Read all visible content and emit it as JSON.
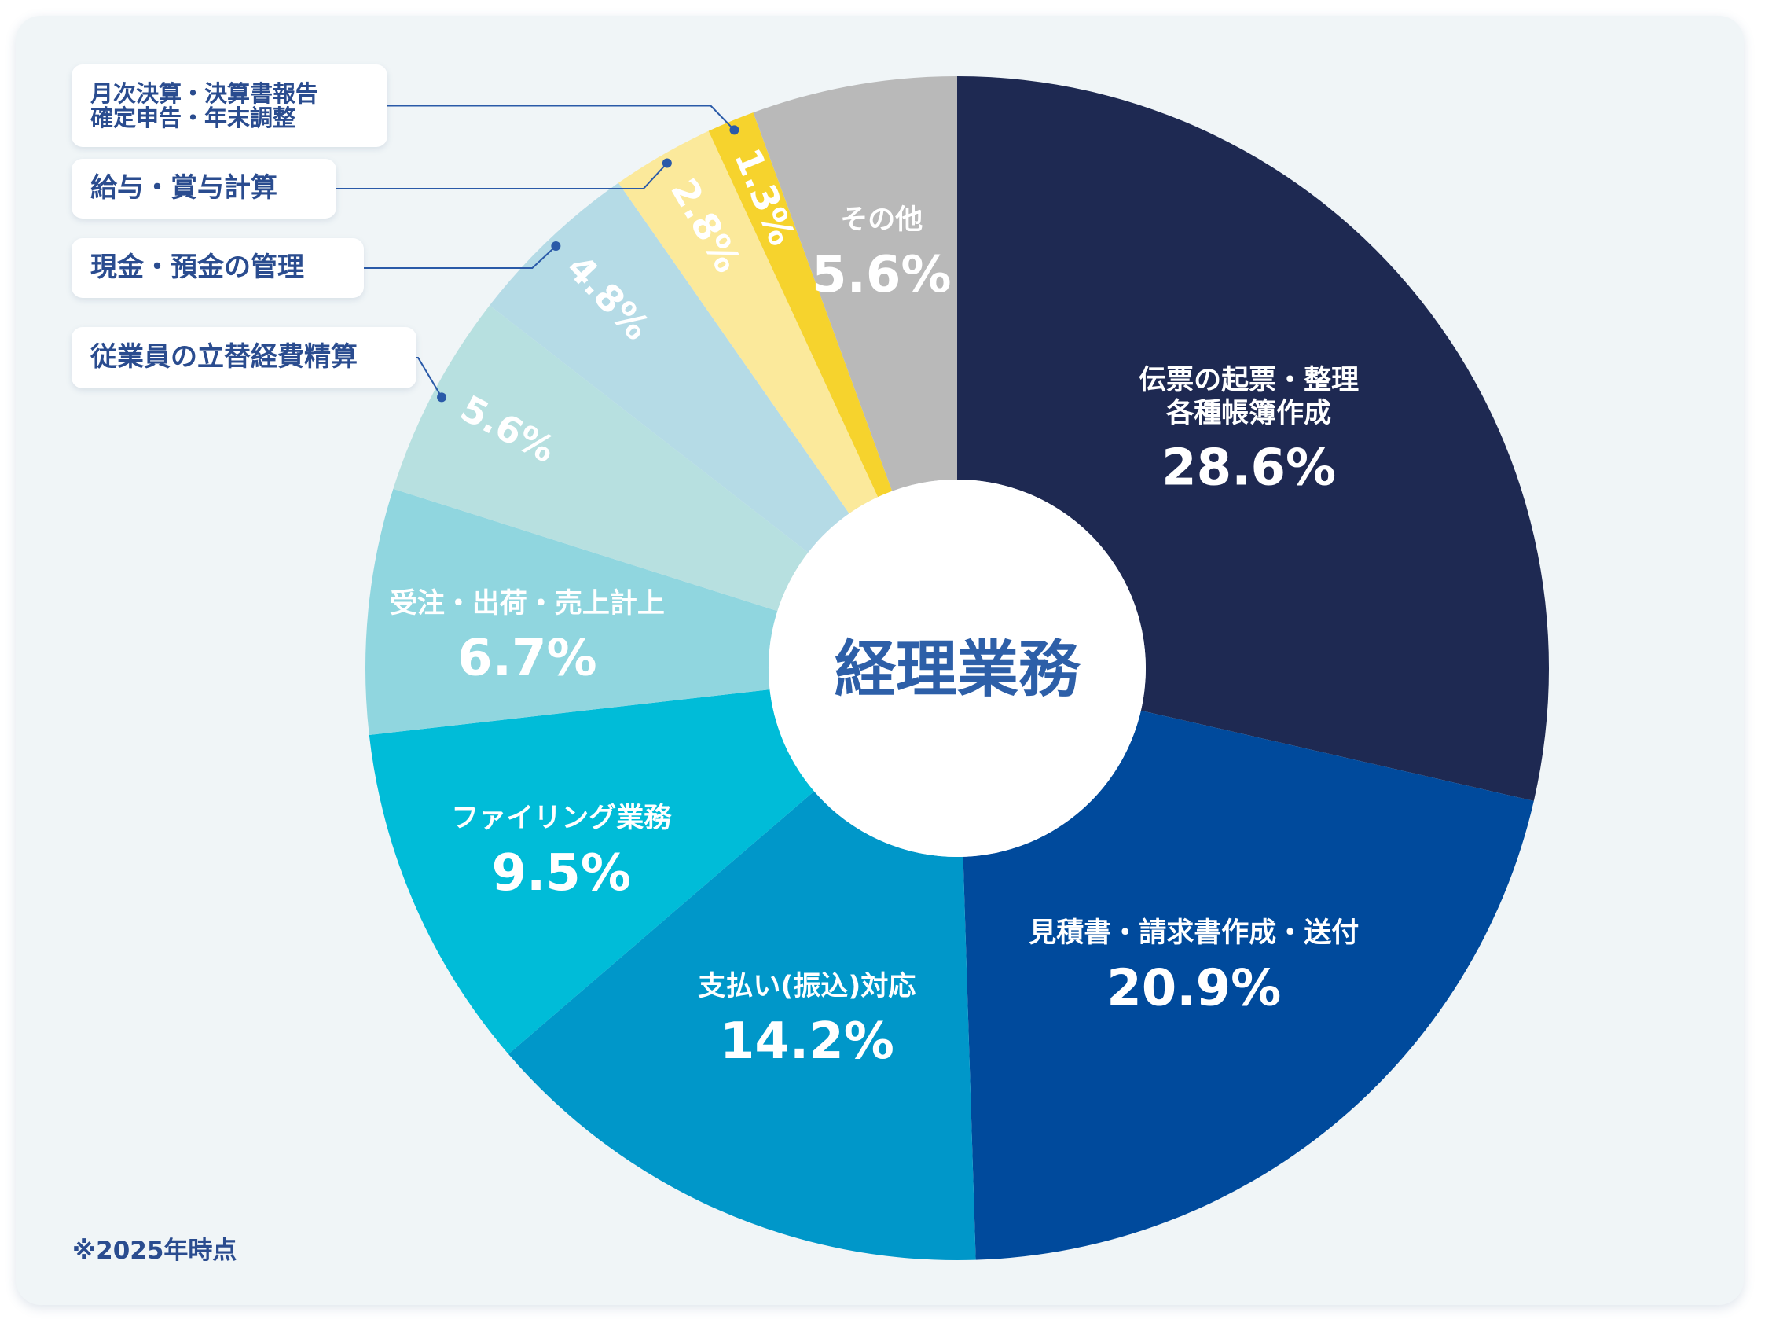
{
  "chart_data": {
    "type": "donut",
    "title": "経理業務",
    "footnote": "※2025年時点",
    "categories": [
      "伝票の起票・整理\n各種帳簿作成",
      "見積書・請求書作成・送付",
      "支払い(振込)対応",
      "ファイリング業務",
      "受注・出荷・売上計上",
      "従業員の立替経費精算",
      "現金・預金の管理",
      "給与・賞与計算",
      "月次決算・決算書報告\n確定申告・年末調整",
      "その他"
    ],
    "values": [
      28.6,
      20.9,
      14.2,
      9.5,
      6.7,
      5.6,
      4.8,
      2.8,
      1.3,
      5.6
    ],
    "value_labels": [
      "28.6%",
      "20.9%",
      "14.2%",
      "9.5%",
      "6.7%",
      "5.6%",
      "4.8%",
      "2.8%",
      "1.3%",
      "5.6%"
    ],
    "colors": [
      "#1e2952",
      "#004a9c",
      "#0097c9",
      "#00bcd8",
      "#90d6df",
      "#b7e0e0",
      "#b5dbe6",
      "#fbe99b",
      "#f6d32d",
      "#b9b9b9"
    ]
  }
}
